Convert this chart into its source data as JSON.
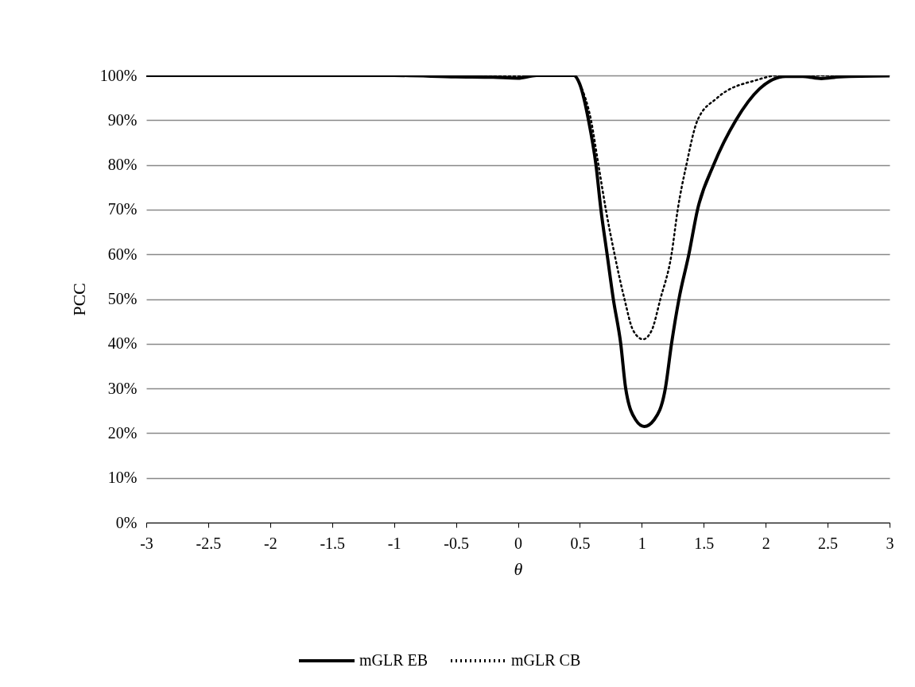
{
  "chart_data": {
    "type": "line",
    "xlabel": "θ",
    "ylabel": "PCC",
    "xlim": [
      -3,
      3
    ],
    "ylim": [
      0,
      100
    ],
    "xticks": [
      -3,
      -2.5,
      -2,
      -1.5,
      -1,
      -0.5,
      0,
      0.5,
      1,
      1.5,
      2,
      2.5,
      3
    ],
    "yticks": [
      {
        "value": 0,
        "label": "0%"
      },
      {
        "value": 10,
        "label": "10%"
      },
      {
        "value": 20,
        "label": "20%"
      },
      {
        "value": 30,
        "label": "30%"
      },
      {
        "value": 40,
        "label": "40%"
      },
      {
        "value": 50,
        "label": "50%"
      },
      {
        "value": 60,
        "label": "60%"
      },
      {
        "value": 70,
        "label": "70%"
      },
      {
        "value": 80,
        "label": "80%"
      },
      {
        "value": 90,
        "label": "90%"
      },
      {
        "value": 100,
        "label": "100%"
      }
    ],
    "grid": "y",
    "legend": "bottom",
    "series": [
      {
        "name": "mGLR EB",
        "color": "#000000",
        "line_style": "solid",
        "x": [
          -3,
          -2,
          -1,
          -0.5,
          -0.2,
          0,
          0.15,
          0.45,
          0.5,
          0.57,
          0.63,
          0.67,
          0.72,
          0.77,
          0.83,
          0.87,
          0.95,
          1.02,
          1.1,
          1.19,
          1.24,
          1.3,
          1.38,
          1.45,
          1.58,
          1.76,
          1.95,
          2.16,
          2.3,
          2.45,
          2.6,
          3
        ],
        "values": [
          100,
          100,
          100,
          99.7,
          99.6,
          99.4,
          100,
          100,
          98,
          90,
          80,
          70,
          60,
          50,
          40,
          30,
          23,
          21.5,
          23,
          30,
          40,
          50,
          60,
          70,
          80,
          90,
          97,
          99.8,
          99.8,
          99.3,
          99.7,
          99.9
        ]
      },
      {
        "name": "mGLR CB",
        "color": "#000000",
        "line_style": "dotted",
        "x": [
          -3,
          -1,
          -0.5,
          0,
          0.2,
          0.45,
          0.5,
          0.59,
          0.65,
          0.71,
          0.78,
          0.86,
          0.93,
          1.01,
          1.08,
          1.15,
          1.24,
          1.29,
          1.36,
          1.45,
          1.61,
          1.93,
          2.1,
          3
        ],
        "values": [
          100,
          100,
          99.8,
          99.8,
          100,
          100,
          98,
          90,
          80,
          70,
          60,
          50,
          43,
          41,
          43,
          50,
          60,
          70,
          80,
          90,
          95,
          99,
          100,
          100
        ]
      }
    ]
  }
}
